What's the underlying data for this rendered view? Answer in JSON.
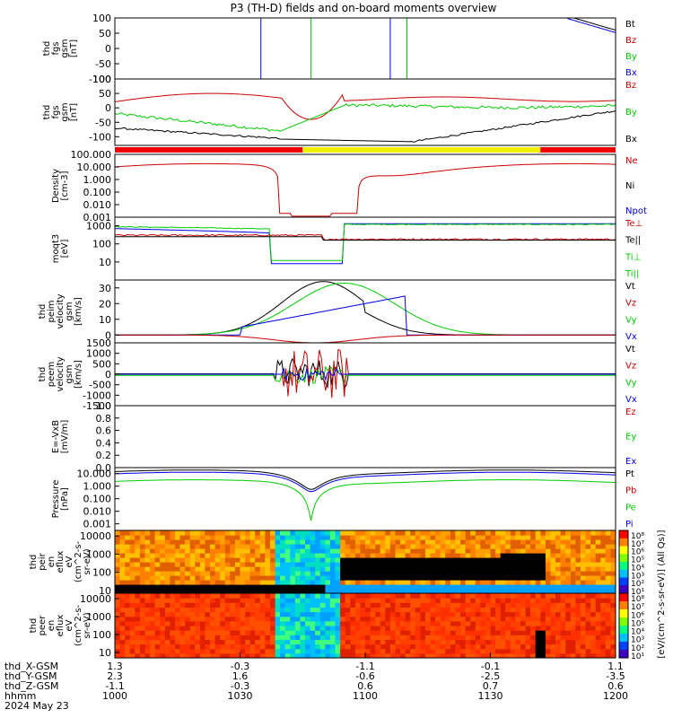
{
  "title": "P3 (TH-D) fields and on-board moments overview",
  "colors": {
    "black": "#000000",
    "red": "#cc0000",
    "green": "#00cc00",
    "blue": "#0000ee",
    "yellow": "#f0f000",
    "bar_red": "#ee0000"
  },
  "chart_data": [
    {
      "type": "line",
      "id": "fgs",
      "ylabel_lines": [
        "thd",
        "fgs",
        "gsm",
        "[nT]"
      ],
      "ylim": [
        -100,
        100
      ],
      "yticks": [
        "100",
        "50",
        "0",
        "-50",
        "-100"
      ],
      "legend": [
        {
          "label": "Bt",
          "color": "#000000"
        },
        {
          "label": "Bz",
          "color": "#cc0000"
        },
        {
          "label": "By",
          "color": "#00cc00"
        },
        {
          "label": "Bx",
          "color": "#0000ee"
        }
      ]
    },
    {
      "type": "line",
      "id": "fgs_lo",
      "ylabel_lines": [
        "thd",
        "fgs",
        "gsm",
        "[nT]"
      ],
      "ylim": [
        -130,
        100
      ],
      "yticks": [
        "100",
        "50",
        "0",
        "-50",
        "-100"
      ],
      "legend": [
        {
          "label": "Bz",
          "color": "#cc0000"
        },
        {
          "label": "By",
          "color": "#00cc00"
        },
        {
          "label": "Bx",
          "color": "#000000"
        }
      ],
      "mode_bar": [
        {
          "from": "1000",
          "to": "1045",
          "color": "red"
        },
        {
          "from": "1045",
          "to": "1142",
          "color": "yellow"
        },
        {
          "from": "1142",
          "to": "1200",
          "color": "red"
        }
      ]
    },
    {
      "type": "line",
      "id": "density",
      "yscale": "log",
      "ylabel_lines": [
        "Density",
        "[cm-3]"
      ],
      "ylim": [
        0.001,
        100
      ],
      "yticks": [
        "100.000",
        "10.000",
        "1.000",
        "0.100",
        "0.010",
        "0.001"
      ],
      "legend": [
        {
          "label": "Ne",
          "color": "#cc0000"
        },
        {
          "label": "Ni",
          "color": "#000000"
        },
        {
          "label": "Npot",
          "color": "#0000ee"
        }
      ]
    },
    {
      "type": "line",
      "id": "temp",
      "yscale": "log",
      "ylabel_lines": [
        "moqt3",
        "[eV]"
      ],
      "ylim": [
        1,
        3000
      ],
      "yticks": [
        "1000",
        "100",
        "10"
      ],
      "legend": [
        {
          "label": "Te⊥",
          "color": "#cc0000"
        },
        {
          "label": "Te||",
          "color": "#000000"
        },
        {
          "label": "Ti⊥",
          "color": "#00cc00"
        },
        {
          "label": "Ti||",
          "color": "#00cc00"
        }
      ]
    },
    {
      "type": "line",
      "id": "peim",
      "ylabel_lines": [
        "thd",
        "peim",
        "velocity",
        "gsm",
        "[km/s]"
      ],
      "ylim": [
        -5,
        35
      ],
      "yticks": [
        "30",
        "20",
        "10",
        "0"
      ],
      "legend": [
        {
          "label": "Vt",
          "color": "#000000"
        },
        {
          "label": "Vz",
          "color": "#cc0000"
        },
        {
          "label": "Vy",
          "color": "#00cc00"
        },
        {
          "label": "Vx",
          "color": "#0000ee"
        }
      ]
    },
    {
      "type": "line",
      "id": "peem",
      "ylabel_lines": [
        "thd",
        "peem",
        "velocity",
        "gsm",
        "[km/s]"
      ],
      "ylim": [
        -1500,
        1500
      ],
      "yticks": [
        "1500",
        "1000",
        "500",
        "0",
        "-500",
        "-1000",
        "-1500"
      ],
      "legend": [
        {
          "label": "Vt",
          "color": "#000000"
        },
        {
          "label": "Vz",
          "color": "#cc0000"
        },
        {
          "label": "Vy",
          "color": "#00cc00"
        },
        {
          "label": "Vx",
          "color": "#0000ee"
        }
      ]
    },
    {
      "type": "line",
      "id": "efield",
      "ylabel_lines": [
        "E=-VxB",
        "[mV/m]"
      ],
      "ylim": [
        0,
        1
      ],
      "yticks": [
        "1.0",
        "0.8",
        "0.6",
        "0.4",
        "0.2",
        "0.0"
      ],
      "legend": [
        {
          "label": "Ez",
          "color": "#cc0000"
        },
        {
          "label": "Ey",
          "color": "#00cc00"
        },
        {
          "label": "Ex",
          "color": "#0000ee"
        }
      ]
    },
    {
      "type": "line",
      "id": "pressure",
      "yscale": "log",
      "ylabel_lines": [
        "Pressure",
        "[nPa]"
      ],
      "ylim": [
        0.0003,
        30
      ],
      "yticks": [
        "10.000",
        "1.000",
        "0.100",
        "0.010",
        "0.001"
      ],
      "legend": [
        {
          "label": "Pt",
          "color": "#000000"
        },
        {
          "label": "Pb",
          "color": "#cc0000"
        },
        {
          "label": "Pe",
          "color": "#00cc00"
        },
        {
          "label": "Pi",
          "color": "#0000ee"
        }
      ]
    },
    {
      "type": "heatmap",
      "id": "peir",
      "ylabel_lines": [
        "thd",
        "peir",
        "en",
        "eflux",
        "eV",
        "(cm^2-s-",
        "sr-eV)"
      ],
      "yscale": "log",
      "ylim": [
        7,
        20000
      ],
      "yticks": [
        "10000",
        "1000",
        "100",
        "10"
      ]
    },
    {
      "type": "heatmap",
      "id": "peer",
      "ylabel_lines": [
        "thd",
        "peer",
        "en",
        "eflux",
        "eV",
        "(cm^2-s-",
        "sr-eV)"
      ],
      "yscale": "log",
      "ylim": [
        5,
        20000
      ],
      "yticks": [
        "10000",
        "1000",
        "100",
        "10"
      ]
    }
  ],
  "colorbar": {
    "ticks": [
      "10⁸",
      "10⁷",
      "10⁶",
      "10⁵",
      "10⁴",
      "10³",
      "10²",
      "10¹",
      "10⁸",
      "10⁷",
      "10⁶",
      "10⁵",
      "10⁴",
      "10³",
      "10²",
      "10¹"
    ],
    "label": "[eV/(cm^2-s-sr-eV)] (All Qs)]"
  },
  "x_axis": {
    "columns": [
      [
        "1.3",
        "2.3",
        "-1.1",
        "1000"
      ],
      [
        "-0.3",
        "1.6",
        "-0.3",
        "1030"
      ],
      [
        "-1.1",
        "-0.6",
        "0.6",
        "1100"
      ],
      [
        "-0.1",
        "-2.5",
        "0.7",
        "1130"
      ],
      [
        "1.1",
        "-3.5",
        "0.6",
        "1200"
      ]
    ],
    "row_labels": [
      "thd_X-GSM",
      "thd_Y-GSM",
      "thd_Z-GSM",
      "hhmm"
    ],
    "date": "2024 May 23"
  }
}
